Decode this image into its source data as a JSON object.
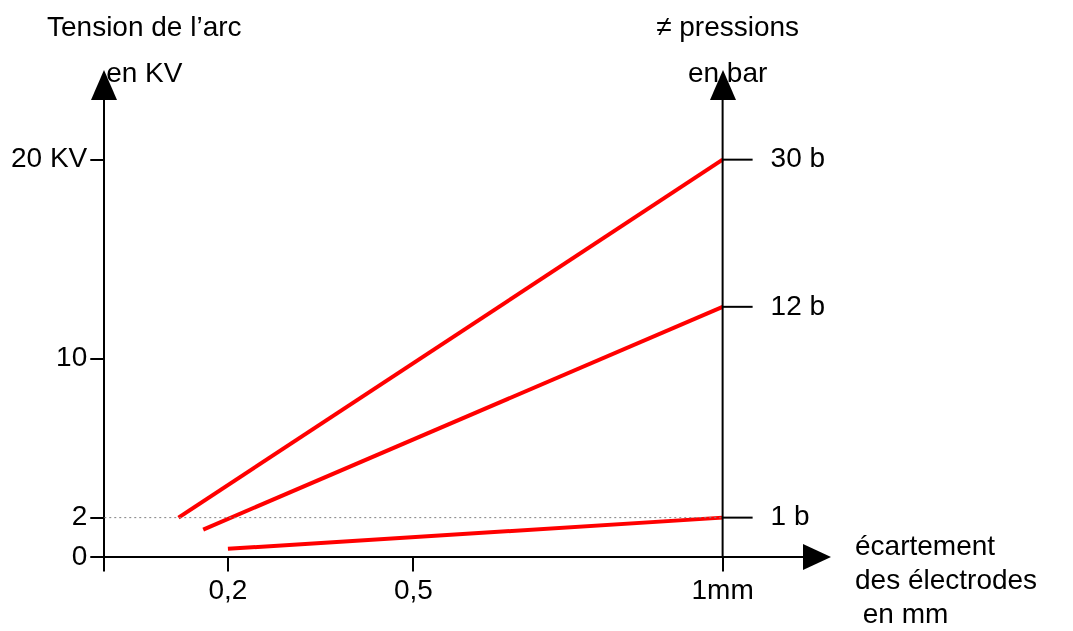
{
  "chart_data": {
    "type": "line",
    "ylabel": "Tension de l’arc\nen KV",
    "y2label": "≠ pressions\nen bar",
    "xlabel": "écartement\ndes électrodes\n en mm",
    "xlim": [
      0,
      1.13
    ],
    "xticks": [
      {
        "value": 0,
        "label": null
      },
      {
        "value": 0.2,
        "label": "0,2"
      },
      {
        "value": 0.5,
        "label": "0,5"
      },
      {
        "value": 1,
        "label": "1mm"
      }
    ],
    "ylim": [
      0,
      23
    ],
    "yticks": [
      0,
      2,
      10,
      {
        "value": 20,
        "label": "20 KV"
      }
    ],
    "series": [
      {
        "name": "30 b",
        "color": "#ff0000",
        "x": [
          0.12,
          1
        ],
        "values": [
          2,
          20
        ]
      },
      {
        "name": "12 b",
        "color": "#ff0000",
        "x": [
          0.16,
          1
        ],
        "values": [
          1.4,
          12.6
        ]
      },
      {
        "name": "1 b",
        "color": "#ff0000",
        "x": [
          0.2,
          1
        ],
        "values": [
          0.43,
          2
        ]
      }
    ],
    "ref_lines": [
      {
        "axis": "y",
        "value": 2,
        "color": "#808080",
        "line_style": "dotted"
      },
      {
        "axis": "x",
        "value": 1,
        "color": "#000000",
        "line_style": "solid"
      }
    ],
    "grid": false,
    "legend": false,
    "marker": "none",
    "line_style": "solid"
  }
}
